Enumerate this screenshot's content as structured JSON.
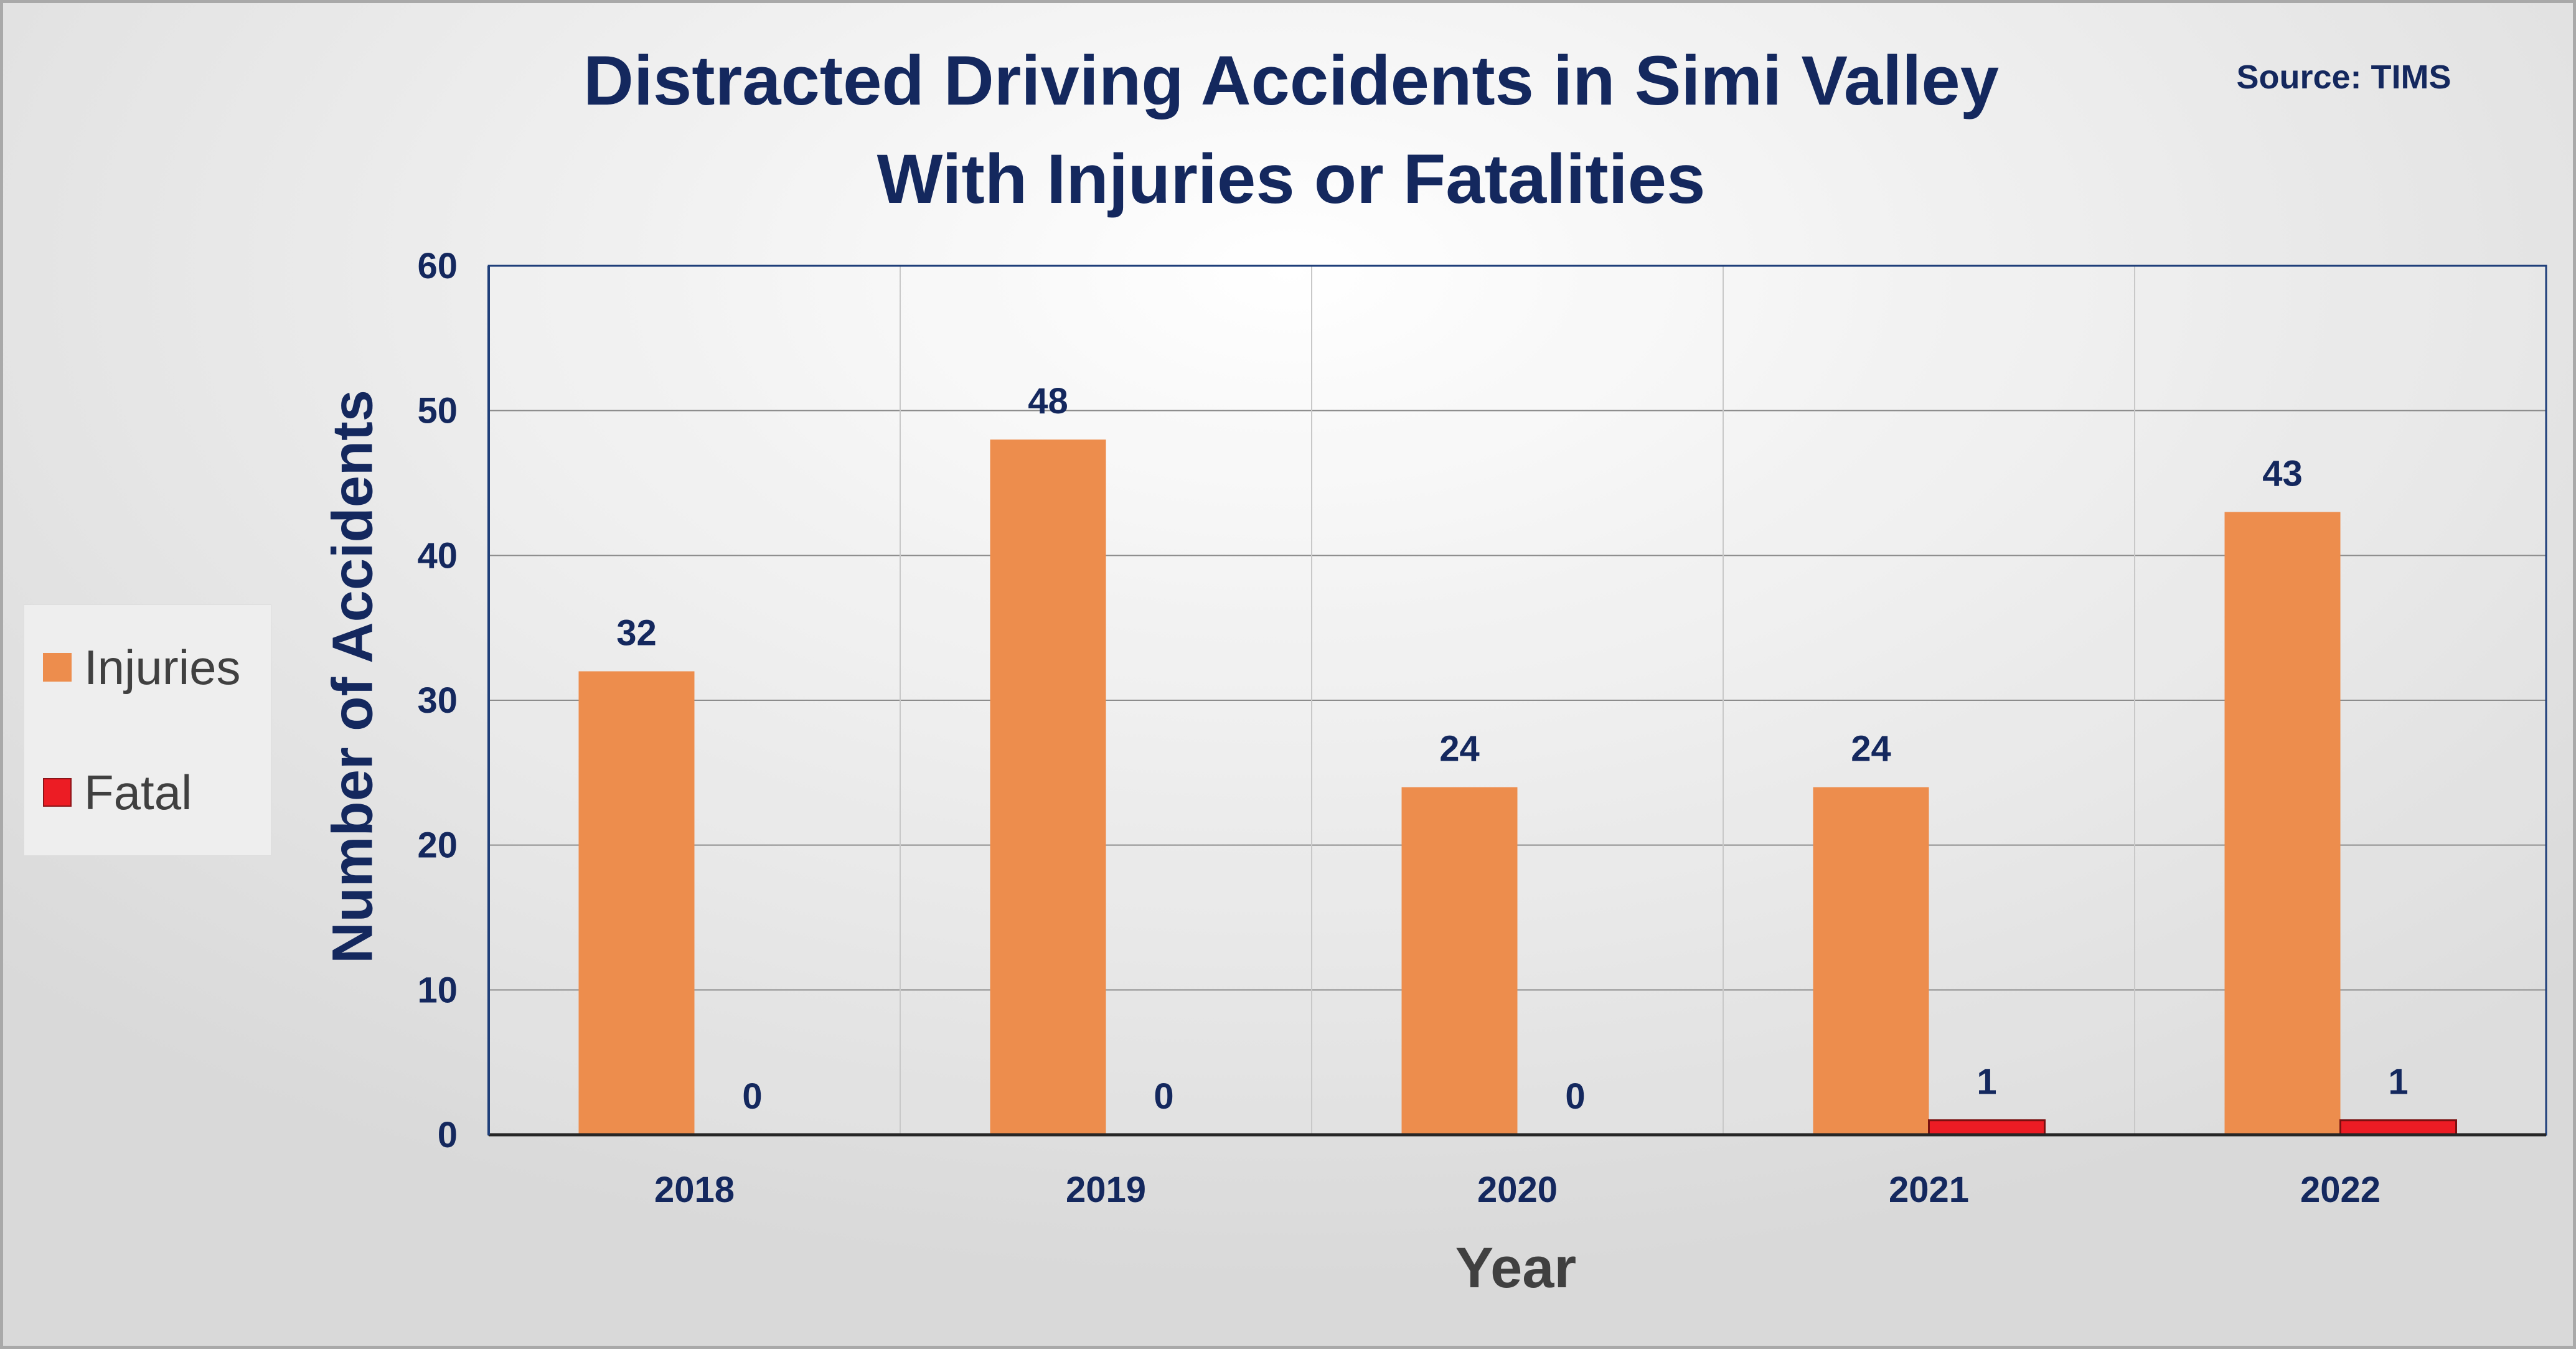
{
  "chart_data": {
    "type": "bar",
    "title": "Distracted Driving Accidents in Simi Valley",
    "subtitle": "With Injuries or Fatalities",
    "source": "Source: TIMS",
    "xlabel": "Year",
    "ylabel": "Number of Accidents",
    "categories": [
      "2018",
      "2019",
      "2020",
      "2021",
      "2022"
    ],
    "series": [
      {
        "name": "Injuries",
        "color": "#ed8d4d",
        "values": [
          32,
          48,
          24,
          24,
          43
        ]
      },
      {
        "name": "Fatal",
        "color": "#ec1c24",
        "values": [
          0,
          0,
          0,
          1,
          1
        ]
      }
    ],
    "ylim": [
      0,
      60
    ],
    "yticks": [
      0,
      10,
      20,
      30,
      40,
      50,
      60
    ],
    "grid": true,
    "legend": "left",
    "data_labels": true
  }
}
